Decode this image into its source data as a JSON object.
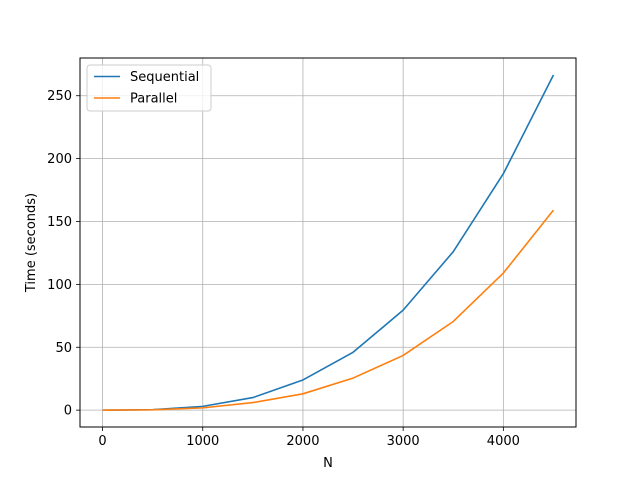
{
  "chart_data": {
    "type": "line",
    "title": "",
    "xlabel": "N",
    "ylabel": "Time (seconds)",
    "x": [
      0,
      500,
      1000,
      1500,
      2000,
      2500,
      3000,
      3500,
      4000,
      4500
    ],
    "series": [
      {
        "name": "Sequential",
        "color": "#1f77b4",
        "values": [
          0,
          0.4,
          3,
          10,
          24,
          46,
          79.5,
          126,
          188,
          266.5
        ]
      },
      {
        "name": "Parallel",
        "color": "#ff7f0e",
        "values": [
          0,
          0.3,
          1.8,
          6,
          13,
          25.5,
          43.5,
          70.5,
          109,
          159
        ]
      }
    ],
    "xlim": [
      -225,
      4725
    ],
    "ylim": [
      -13.4,
      280
    ],
    "xticks": [
      0,
      1000,
      2000,
      3000,
      4000
    ],
    "xtick_labels": [
      "0",
      "1000",
      "2000",
      "3000",
      "4000"
    ],
    "yticks": [
      0,
      50,
      100,
      150,
      200,
      250
    ],
    "ytick_labels": [
      "0",
      "50",
      "100",
      "150",
      "200",
      "250"
    ],
    "grid": true,
    "legend_position": "upper-left"
  }
}
